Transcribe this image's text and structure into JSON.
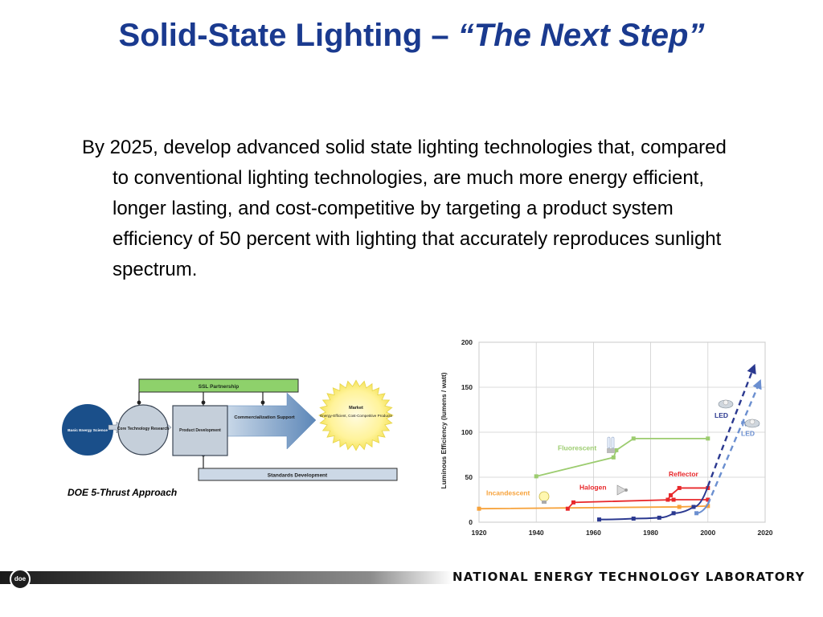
{
  "slide": {
    "title_main": "Solid-State Lighting – ",
    "title_emph": "“The Next Step”",
    "body": "By 2025, develop advanced solid state lighting technologies that, compared to conventional lighting technologies, are much more energy efficient, longer lasting, and cost-competitive by targeting a product system efficiency of 50 percent with lighting that accurately reproduces sunlight spectrum.",
    "diagram": {
      "top_bar": "SSL Partnership",
      "bottom_bar": "Standards Development",
      "node1": "Basic Energy Science",
      "node2": "Core Technology Research",
      "node3": "Product Development",
      "node4": "Commercialization Support",
      "node5_title": "Market",
      "node5_sub": "Energy-Efficient, Cost-Competitive Products"
    },
    "caption": "DOE 5-Thrust Approach",
    "footer": {
      "logo": "doe",
      "text": "NATIONAL ENERGY TECHNOLOGY LABORATORY"
    }
  },
  "chart_data": {
    "type": "line",
    "ylabel": "Luminous Efficiency (lumens / watt)",
    "xlabel": "",
    "xlim": [
      1920,
      2020
    ],
    "ylim": [
      0,
      200
    ],
    "xticks": [
      1920,
      1940,
      1960,
      1980,
      2000,
      2020
    ],
    "yticks": [
      0,
      50,
      100,
      150,
      200
    ],
    "grid": true,
    "series": [
      {
        "name": "Incandescent",
        "color": "#f7a23a",
        "x": [
          1920,
          1990,
          2000
        ],
        "y": [
          15,
          17,
          18
        ]
      },
      {
        "name": "Halogen",
        "color": "#e8282b",
        "x": [
          1951,
          1953,
          1988,
          2000
        ],
        "y": [
          15,
          22,
          25,
          25
        ]
      },
      {
        "name": "Reflector",
        "color": "#e8282b",
        "x": [
          1986,
          1987,
          1990,
          2000
        ],
        "y": [
          25,
          30,
          38,
          38
        ]
      },
      {
        "name": "Fluorescent",
        "color": "#9ccc6f",
        "x": [
          1940,
          1967,
          1968,
          1974,
          2000
        ],
        "y": [
          51,
          72,
          80,
          93,
          93
        ]
      },
      {
        "name": "LED",
        "color": "#2b3990",
        "x": [
          1962,
          1974,
          1983,
          1988,
          1995,
          2000,
          2006,
          2016
        ],
        "y": [
          3,
          4,
          5,
          10,
          17,
          40,
          90,
          172
        ]
      },
      {
        "name": "White LED",
        "color": "#6b8fd0",
        "x": [
          1996,
          2000,
          2006,
          2018
        ],
        "y": [
          10,
          20,
          65,
          155
        ]
      }
    ]
  }
}
